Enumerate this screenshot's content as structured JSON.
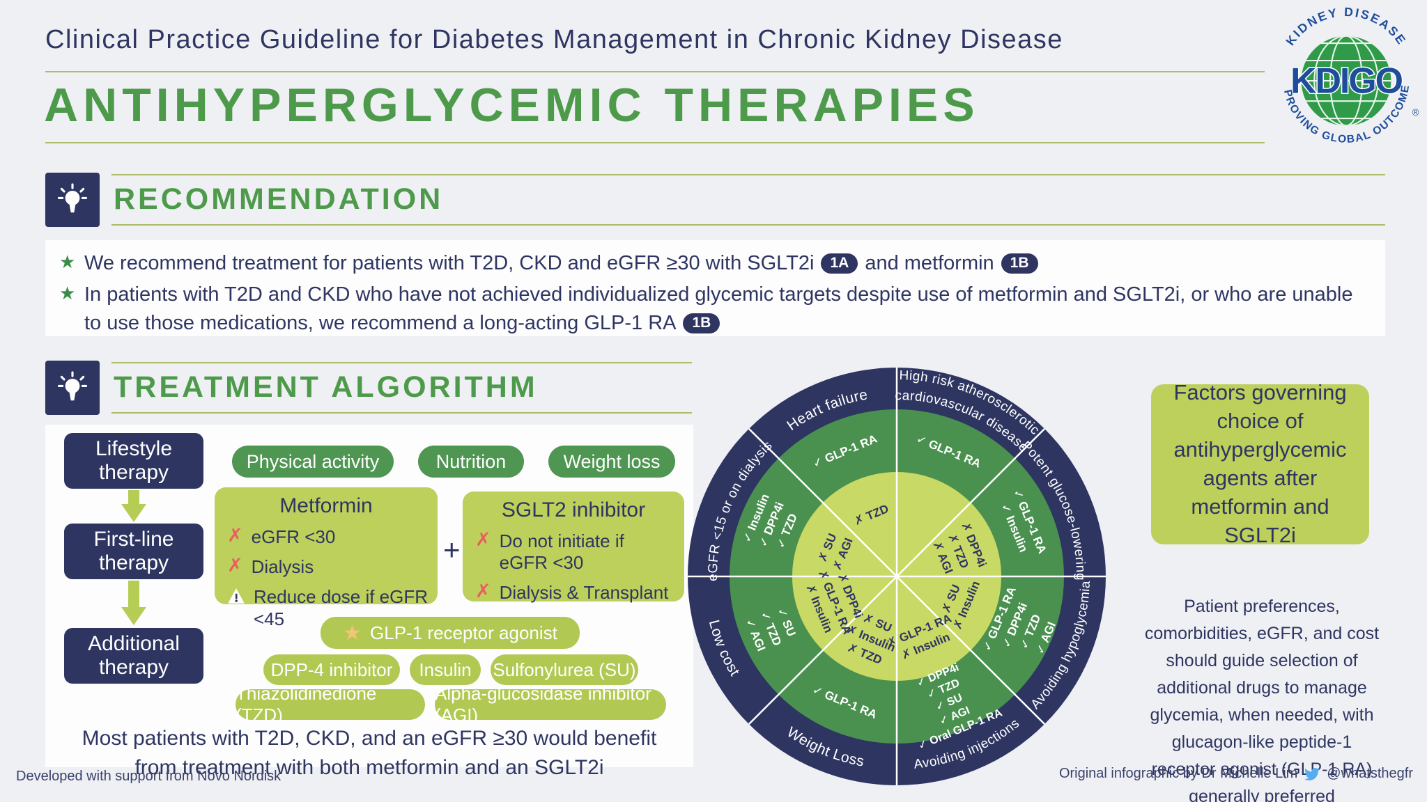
{
  "header": {
    "title": "Clinical Practice Guideline for Diabetes Management in Chronic Kidney Disease",
    "subtitle": "ANTIHYPERGLYCEMIC THERAPIES"
  },
  "logo": {
    "top_text": "KIDNEY DISEASE",
    "name": "KDIGO",
    "bottom_text": "IMPROVING GLOBAL OUTCOMES",
    "reg": "®"
  },
  "recommendation": {
    "heading": "RECOMMENDATION",
    "bullet1_text1": "We recommend treatment for patients with T2D, CKD and eGFR ≥30 with SGLT2i",
    "bullet1_badge1": "1A",
    "bullet1_text2": "and metformin",
    "bullet1_badge2": "1B",
    "bullet2_text": "In patients with T2D and CKD who have not achieved individualized glycemic targets despite use of metformin and SGLT2i, or who are unable to use those medications, we recommend a long-acting GLP-1 RA",
    "bullet2_badge": "1B"
  },
  "algorithm": {
    "heading": "TREATMENT ALGORITHM",
    "stages": [
      {
        "line1": "Lifestyle",
        "line2": "therapy"
      },
      {
        "line1": "First-line",
        "line2": "therapy"
      },
      {
        "line1": "Additional",
        "line2": "therapy"
      }
    ],
    "lifestyle_pills": [
      "Physical activity",
      "Nutrition",
      "Weight loss"
    ],
    "metformin": {
      "title": "Metformin",
      "items": [
        {
          "icon": "cross",
          "text": "eGFR <30"
        },
        {
          "icon": "cross",
          "text": "Dialysis"
        },
        {
          "icon": "warning",
          "text": "Reduce dose if eGFR <45"
        }
      ]
    },
    "plus": "+",
    "sglt2": {
      "title": "SGLT2 inhibitor",
      "items": [
        {
          "icon": "cross",
          "text": "Do not initiate if eGFR <30"
        },
        {
          "icon": "cross",
          "text": "Dialysis & Transplant"
        }
      ]
    },
    "star_pill": "GLP-1 receptor agonist",
    "additional_pills_row2": [
      "DPP-4 inhibitor",
      "Insulin",
      "Sulfonylurea (SU)"
    ],
    "additional_pills_row3": [
      "Thiazolidinedione (TZD)",
      "Alpha-glucosidase inhibitor (AGI)"
    ],
    "footnote_line1": "Most patients with T2D, CKD, and an eGFR ≥30 would benefit",
    "footnote_line2": "from treatment with both metformin and an SGLT2i"
  },
  "wheel": {
    "title": "Factor wheel: preferred and non-preferred agents by patient factor",
    "sectors": [
      {
        "label": "High risk atherosclerotic cardiovascular disease",
        "label_lines": [
          "High risk atherosclerotic",
          "cardiovascular disease"
        ],
        "checks": [
          "GLP-1 RA"
        ],
        "crosses": []
      },
      {
        "label": "Potent glucose-lowering",
        "checks": [
          "GLP-1 RA",
          "Insulin"
        ],
        "crosses": [
          "DPP4i",
          "TZD",
          "AGI"
        ]
      },
      {
        "label": "Avoiding hypoglycemia",
        "checks": [
          "GLP-1 RA",
          "DPP4i",
          "TZD",
          "AGI"
        ],
        "crosses": [
          "SU",
          "Insulin"
        ]
      },
      {
        "label": "Avoiding injections",
        "checks": [
          "DPP4i",
          "TZD",
          "SU",
          "AGI",
          "Oral GLP-1 RA"
        ],
        "crosses": [
          "GLP-1 RA",
          "Insulin"
        ]
      },
      {
        "label": "Weight Loss",
        "checks": [
          "GLP-1 RA"
        ],
        "crosses": [
          "SU",
          "Insulin",
          "TZD"
        ]
      },
      {
        "label": "Low cost",
        "checks": [
          "SU",
          "TZD",
          "AGI"
        ],
        "crosses": [
          "DPP4i",
          "GLP-1 RA",
          "Insulin"
        ]
      },
      {
        "label": "eGFR <15 or on dialysis",
        "checks": [
          "Insulin",
          "DPP4i",
          "TZD"
        ],
        "crosses": [
          "SU",
          "AGI"
        ]
      },
      {
        "label": "Heart failure",
        "checks": [
          "GLP-1 RA"
        ],
        "crosses": [
          "TZD"
        ]
      }
    ],
    "check_glyph": "✓",
    "cross_glyph": "✗"
  },
  "factors_box": {
    "text": "Factors governing choice of antihyperglycemic agents after metformin and SGLT2i"
  },
  "side_note": "Patient preferences, comorbidities, eGFR, and cost should guide selection of additional drugs to manage glycemia, when needed, with glucagon-like peptide-1 receptor agonist (GLP-1 RA) generally preferred",
  "footer": {
    "left": "Developed with support from Novo Nordisk",
    "right": "Original infographic by Dr Michelle Lim",
    "handle": "@whatsthegfr"
  },
  "colors": {
    "navy": "#2e3561",
    "green": "#4e9a4b",
    "pill_green": "#4e9651",
    "lime": "#bdd05b",
    "wheel_mid_green": "#4a9150",
    "wheel_inner_lime": "#c9d966",
    "cross_red": "#e85f5f",
    "star_gold": "#f2c577",
    "twitter_blue": "#55acee"
  }
}
